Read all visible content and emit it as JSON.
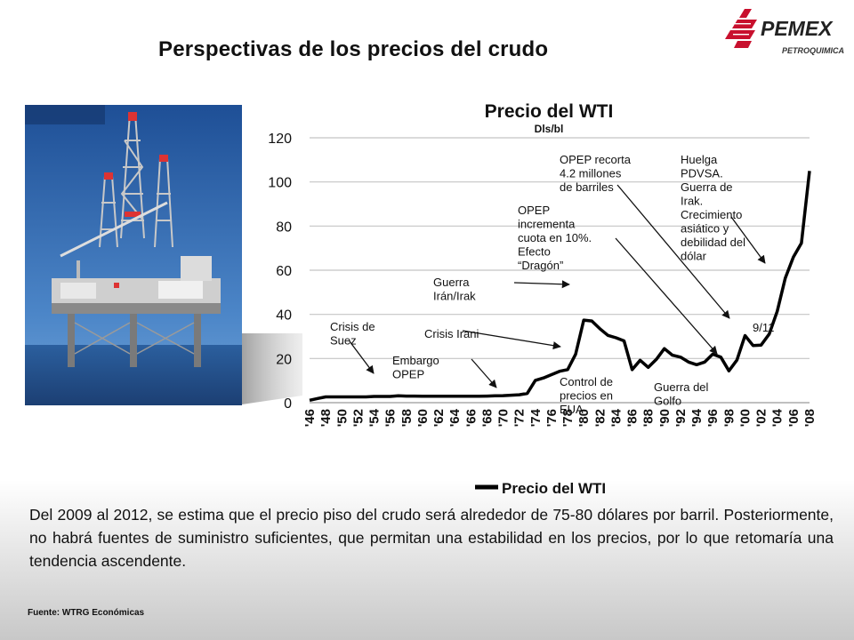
{
  "slide": {
    "title": "Perspectivas de los precios del crudo",
    "caption": "Del 2009 al 2012, se estima que el precio piso del crudo será alrededor de 75-80 dólares por barril.  Posteriormente, no habrá fuentes de suministro suficientes, que permitan una estabilidad en los precios, por lo que retomaría una tendencia ascendente.",
    "source": "Fuente: WTRG Económicas"
  },
  "logo": {
    "name": "PEMEX",
    "subtitle": "PETROQUIMICA",
    "icon": "eagle-icon",
    "color": "#c8102e"
  },
  "photo": {
    "icon": "offshore-oil-rig-photo"
  },
  "chart_data": {
    "type": "line",
    "title": "Precio del WTI",
    "subtitle": "Dls/bl",
    "ylim": [
      0,
      120
    ],
    "yticks": [
      0,
      20,
      40,
      60,
      80,
      100,
      120
    ],
    "grid": true,
    "legend_position": "bottom",
    "x": [
      "1946",
      "1947",
      "1948",
      "1949",
      "1950",
      "1951",
      "1952",
      "1953",
      "1954",
      "1955",
      "1956",
      "1957",
      "1958",
      "1959",
      "1960",
      "1961",
      "1962",
      "1963",
      "1964",
      "1965",
      "1966",
      "1967",
      "1968",
      "1969",
      "1970",
      "1971",
      "1972",
      "1973",
      "1974",
      "1975",
      "1976",
      "1977",
      "1978",
      "1979",
      "1980",
      "1981",
      "1982",
      "1983",
      "1984",
      "1985",
      "1986",
      "1987",
      "1988",
      "1989",
      "1990",
      "1991",
      "1992",
      "1993",
      "1994",
      "1995",
      "1996",
      "1997",
      "1998",
      "1999",
      "2000",
      "2001",
      "2002",
      "2003",
      "2004",
      "2005",
      "2006",
      "2007",
      "2008"
    ],
    "xtick_labels": [
      "'46",
      "'48",
      "'50",
      "'52",
      "'54",
      "'56",
      "'58",
      "'60",
      "'62",
      "'64",
      "'66",
      "'68",
      "'70",
      "'72",
      "'74",
      "'76",
      "'78",
      "'80",
      "'82",
      "'84",
      "'86",
      "'88",
      "'90",
      "'92",
      "'94",
      "'96",
      "'98",
      "'00",
      "'02",
      "'04",
      "'06",
      "'08"
    ],
    "series": [
      {
        "name": "Precio del WTI",
        "color": "#000000",
        "values": [
          1.1,
          1.9,
          2.6,
          2.6,
          2.6,
          2.6,
          2.6,
          2.6,
          2.8,
          2.8,
          2.8,
          3.1,
          3.0,
          3.0,
          2.9,
          2.9,
          2.9,
          2.9,
          2.9,
          2.9,
          2.9,
          2.9,
          3.0,
          3.1,
          3.2,
          3.4,
          3.6,
          4.2,
          10.1,
          11.2,
          12.7,
          14.2,
          15.0,
          22.0,
          37.4,
          37.0,
          33.5,
          30.5,
          29.4,
          28.0,
          15.0,
          19.2,
          16.0,
          19.6,
          24.5,
          21.5,
          20.6,
          18.4,
          17.2,
          18.4,
          22.0,
          20.6,
          14.4,
          19.3,
          30.4,
          25.9,
          26.1,
          31.1,
          41.4,
          56.5,
          66.0,
          72.3,
          105.0
        ]
      }
    ],
    "annotations": [
      {
        "lines": [
          "Crisis de",
          "Suez"
        ],
        "x": "1956",
        "y": 2.8
      },
      {
        "lines": [
          "Embargo",
          "OPEP"
        ],
        "x": "1973",
        "y": 4.2
      },
      {
        "lines": [
          "Guerra",
          "Irán/Irak"
        ],
        "x": "1980",
        "y": 53
      },
      {
        "lines": [
          "Crisis Irani"
        ],
        "x": "1979",
        "y": 25
      },
      {
        "lines": [
          "Control de",
          "precios en",
          "EUA"
        ],
        "x": "",
        "y": null
      },
      {
        "lines": [
          "OPEP",
          "incrementa",
          "cuota en 10%.",
          "Efecto",
          "“Dragón”"
        ],
        "x": "1998",
        "y": 20
      },
      {
        "lines": [
          "OPEP recorta",
          "4.2 millones",
          "de barriles"
        ],
        "x": "1999",
        "y": 38
      },
      {
        "lines": [
          "Guerra del",
          "Golfo"
        ],
        "x": "",
        "y": null
      },
      {
        "lines": [
          "Huelga",
          "PDVSA.",
          "Guerra de",
          "Irak.",
          "Crecimiento",
          "asiático y",
          "debilidad del",
          "dólar"
        ],
        "x": "2006",
        "y": 63
      },
      {
        "lines": [
          "9/11"
        ],
        "x": "",
        "y": null
      }
    ]
  }
}
